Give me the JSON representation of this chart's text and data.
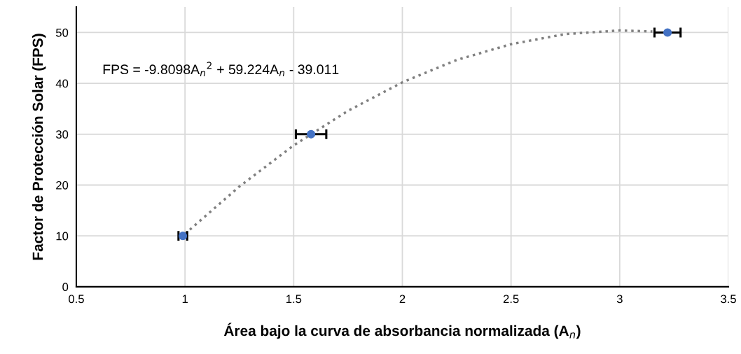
{
  "chart_data": {
    "type": "scatter",
    "xlabel": "Área bajo la curva de absorbancia normalizada (A$_{n}$)",
    "ylabel": "Factor de Protección Solar (FPS)",
    "annotations": [
      "FPS = -9.8098A$_{n}$$^{2}$ + 59.224A$_{n}$ - 39.011"
    ],
    "xlim": [
      0.5,
      3.5
    ],
    "xticks": [
      0.5,
      1,
      1.5,
      2,
      2.5,
      3,
      3.5
    ],
    "ylim": [
      0,
      55
    ],
    "yticks": [
      0,
      10,
      20,
      30,
      40,
      50
    ],
    "grid": true,
    "series": [
      {
        "color": "#4472c4",
        "marker": "circle",
        "x": [
          0.99,
          1.58,
          3.22
        ],
        "values": [
          10,
          30,
          50
        ],
        "xerrors": [
          0.02,
          0.07,
          0.06
        ]
      },
      {
        "type": "line",
        "color": "#808080",
        "line_style": "dotted",
        "marker": "none",
        "x": [
          1.0,
          1.25,
          1.5,
          1.75,
          2.0,
          2.25,
          2.5,
          2.75,
          3.0,
          3.15
        ],
        "values": [
          10.4,
          19.7,
          27.8,
          34.6,
          40.2,
          44.6,
          47.7,
          49.7,
          50.4,
          50.2
        ]
      }
    ]
  }
}
